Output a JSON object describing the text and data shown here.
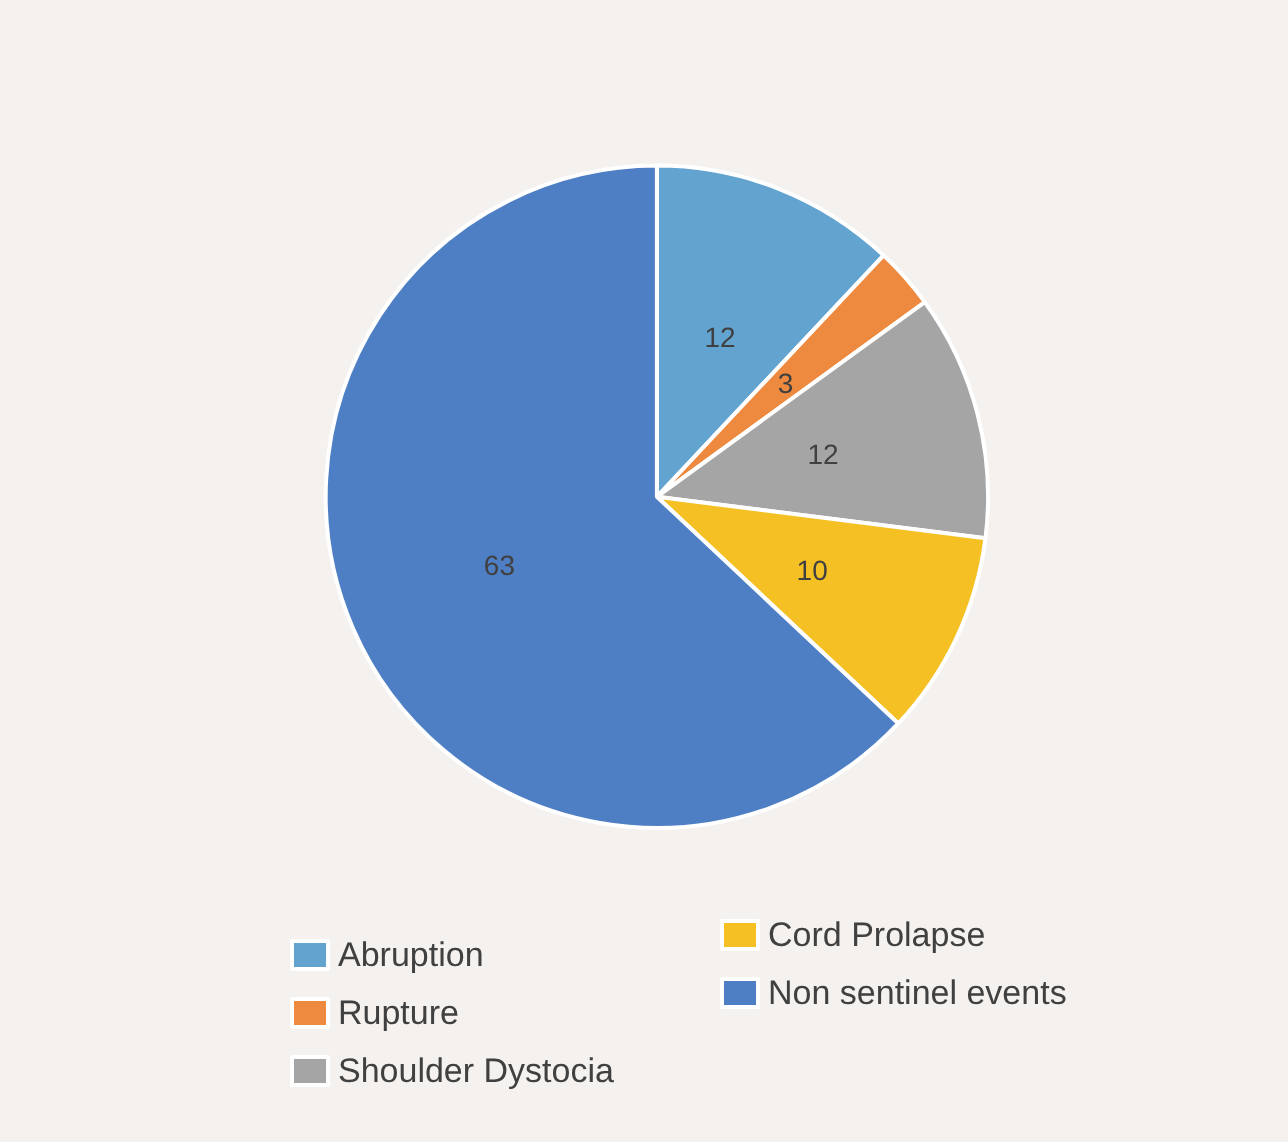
{
  "chart_data": {
    "type": "pie",
    "categories": [
      "Abruption",
      "Rupture",
      "Shoulder Dystocia",
      "Cord Prolapse",
      "Non sentinel events"
    ],
    "values": [
      12,
      3,
      12,
      10,
      63
    ],
    "colors": [
      "#62a3d0",
      "#ed8a3f",
      "#a5a5a5",
      "#f5c024",
      "#4e7fc4"
    ],
    "data_labels": true,
    "legend": "bottom"
  }
}
